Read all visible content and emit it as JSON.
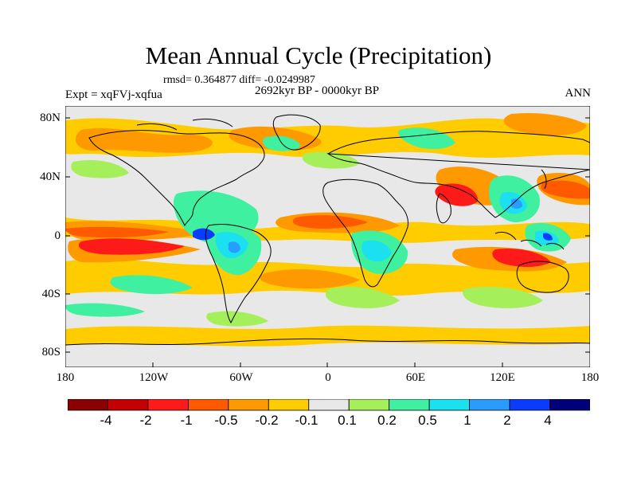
{
  "title": "Mean Annual Cycle (Precipitation)",
  "stats": "rmsd= 0.364877 diff= -0.0249987",
  "period": "2692kyr BP - 0000kyr BP",
  "experiment": "Expt = xqFVj-xqfua",
  "season": "ANN",
  "lat_labels": [
    "80N",
    "40N",
    "0",
    "40S",
    "80S"
  ],
  "lon_labels": [
    "180",
    "120W",
    "60W",
    "0",
    "60E",
    "120E",
    "180"
  ],
  "colorbar": {
    "labels": [
      "-4",
      "-2",
      "-1",
      "-0.5",
      "-0.2",
      "-0.1",
      "0.1",
      "0.2",
      "0.5",
      "1",
      "2",
      "4"
    ],
    "colors": [
      "#8b0000",
      "#c40000",
      "#ff1a1a",
      "#ff5a00",
      "#ff9900",
      "#ffcc00",
      "#e8e8e8",
      "#a5f05a",
      "#3ef0a0",
      "#1ae0f0",
      "#2a9bff",
      "#0a3cff",
      "#00007a"
    ]
  }
}
